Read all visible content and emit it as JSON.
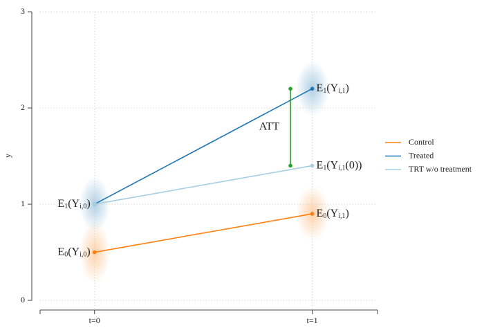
{
  "chart_data": {
    "type": "line",
    "y_label": "y",
    "x": [
      0,
      1
    ],
    "xlim": [
      -0.25,
      1.3
    ],
    "xticks": [
      {
        "value": 0,
        "label": "t=0"
      },
      {
        "value": 1,
        "label": "t=1"
      }
    ],
    "ylim": [
      -0.1,
      3
    ],
    "yticks": [
      0,
      1,
      2,
      3
    ],
    "grid": true,
    "legend": "right",
    "series": [
      {
        "name": "Control",
        "color": "#ff7f0e",
        "values": [
          0.5,
          0.9
        ],
        "point_labels": [
          [
            "E",
            "0",
            "(Y",
            "i,0",
            ")"
          ],
          [
            "E",
            "0",
            "(Y",
            "i,1",
            ")"
          ]
        ]
      },
      {
        "name": "Treated",
        "color": "#1f77b4",
        "values": [
          1.0,
          2.2
        ],
        "point_labels": [
          [
            "E",
            "1",
            "(Y",
            "i,0",
            ")"
          ],
          [
            "E",
            "1",
            "(Y",
            "i,1",
            ")"
          ]
        ]
      },
      {
        "name": "TRT w/o treatment",
        "color": "#a6cee3",
        "values": [
          1.0,
          1.4
        ],
        "point_labels": [
          null,
          [
            "E",
            "1",
            "(Y",
            "i,1",
            "(0))"
          ]
        ]
      }
    ],
    "att": {
      "label": "ATT",
      "x": 0.9,
      "values": [
        1.4,
        2.2
      ],
      "color": "#2ca02c"
    }
  }
}
